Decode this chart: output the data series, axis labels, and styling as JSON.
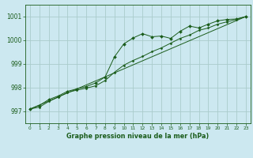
{
  "title": "Graphe pression niveau de la mer (hPa)",
  "background_color": "#cce8f0",
  "grid_color": "#aacccc",
  "line_color": "#1a5c1a",
  "xlim": [
    -0.5,
    23.5
  ],
  "ylim": [
    996.5,
    1001.5
  ],
  "yticks": [
    997,
    998,
    999,
    1000,
    1001
  ],
  "xticks": [
    0,
    1,
    2,
    3,
    4,
    5,
    6,
    7,
    8,
    9,
    10,
    11,
    12,
    13,
    14,
    15,
    16,
    17,
    18,
    19,
    20,
    21,
    22,
    23
  ],
  "series1_x": [
    0,
    1,
    2,
    3,
    4,
    5,
    6,
    7,
    8,
    9,
    10,
    11,
    12,
    13,
    14,
    15,
    16,
    17,
    18,
    19,
    20,
    21,
    22,
    23
  ],
  "series1_y": [
    997.1,
    997.25,
    997.5,
    997.65,
    997.85,
    997.95,
    998.05,
    998.2,
    998.45,
    999.3,
    999.85,
    1000.1,
    1000.28,
    1000.15,
    1000.18,
    1000.08,
    1000.38,
    1000.6,
    1000.52,
    1000.68,
    1000.82,
    1000.88,
    1000.9,
    1001.0
  ],
  "series2_x": [
    0,
    1,
    2,
    3,
    4,
    5,
    6,
    7,
    8,
    9,
    10,
    11,
    12,
    13,
    14,
    15,
    16,
    17,
    18,
    19,
    20,
    21,
    22,
    23
  ],
  "series2_y": [
    997.1,
    997.18,
    997.42,
    997.6,
    997.8,
    997.9,
    997.98,
    998.08,
    998.3,
    998.65,
    998.95,
    999.15,
    999.32,
    999.52,
    999.68,
    999.88,
    1000.08,
    1000.22,
    1000.42,
    1000.52,
    1000.68,
    1000.78,
    1000.88,
    1001.0
  ],
  "series3_x": [
    0,
    23
  ],
  "series3_y": [
    997.1,
    1001.0
  ]
}
